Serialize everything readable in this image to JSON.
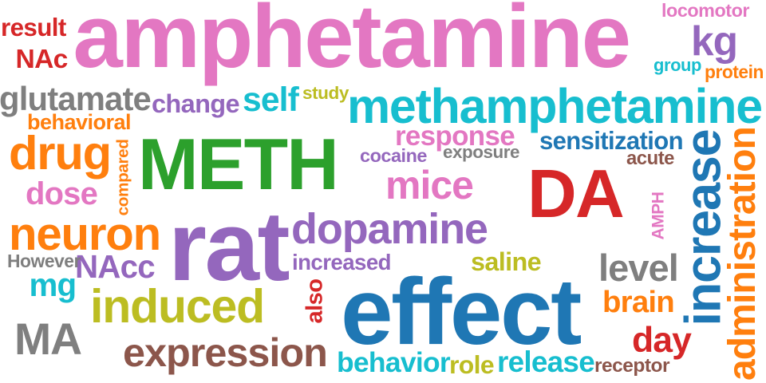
{
  "palette": {
    "blue": "#1f77b4",
    "orange": "#ff7f0e",
    "green": "#2ca02c",
    "red": "#d62728",
    "purple": "#9467bd",
    "brown": "#8c564b",
    "pink": "#e377c2",
    "gray": "#7f7f7f",
    "olive": "#bcbd22",
    "cyan": "#17becf"
  },
  "words": [
    {
      "text": "amphetamine",
      "color": "pink"
    },
    {
      "text": "METH",
      "color": "green"
    },
    {
      "text": "rat",
      "color": "purple"
    },
    {
      "text": "effect",
      "color": "blue"
    },
    {
      "text": "DA",
      "color": "red"
    },
    {
      "text": "methamphetamine",
      "color": "cyan"
    },
    {
      "text": "dopamine",
      "color": "purple"
    },
    {
      "text": "mice",
      "color": "pink"
    },
    {
      "text": "drug",
      "color": "orange"
    },
    {
      "text": "neuron",
      "color": "orange"
    },
    {
      "text": "induced",
      "color": "olive"
    },
    {
      "text": "expression",
      "color": "brown"
    },
    {
      "text": "MA",
      "color": "gray"
    },
    {
      "text": "increase",
      "color": "blue"
    },
    {
      "text": "administration",
      "color": "orange"
    },
    {
      "text": "glutamate",
      "color": "gray"
    },
    {
      "text": "self",
      "color": "cyan"
    },
    {
      "text": "response",
      "color": "pink"
    },
    {
      "text": "sensitization",
      "color": "blue"
    },
    {
      "text": "kg",
      "color": "purple"
    },
    {
      "text": "dose",
      "color": "pink"
    },
    {
      "text": "level",
      "color": "gray"
    },
    {
      "text": "behavior",
      "color": "cyan"
    },
    {
      "text": "release",
      "color": "cyan"
    },
    {
      "text": "day",
      "color": "red"
    },
    {
      "text": "brain",
      "color": "orange"
    },
    {
      "text": "NAcc",
      "color": "purple"
    },
    {
      "text": "mg",
      "color": "cyan"
    },
    {
      "text": "increased",
      "color": "purple"
    },
    {
      "text": "saline",
      "color": "olive"
    },
    {
      "text": "change",
      "color": "purple"
    },
    {
      "text": "result",
      "color": "red"
    },
    {
      "text": "NAc",
      "color": "red"
    },
    {
      "text": "behavioral",
      "color": "orange"
    },
    {
      "text": "cocaine",
      "color": "purple"
    },
    {
      "text": "exposure",
      "color": "gray"
    },
    {
      "text": "acute",
      "color": "brown"
    },
    {
      "text": "AMPH",
      "color": "pink"
    },
    {
      "text": "also",
      "color": "red"
    },
    {
      "text": "However",
      "color": "gray"
    },
    {
      "text": "compared",
      "color": "orange"
    },
    {
      "text": "locomotor",
      "color": "pink"
    },
    {
      "text": "group",
      "color": "cyan"
    },
    {
      "text": "protein",
      "color": "orange"
    },
    {
      "text": "study",
      "color": "olive"
    },
    {
      "text": "role",
      "color": "olive"
    },
    {
      "text": "receptor",
      "color": "brown"
    }
  ]
}
